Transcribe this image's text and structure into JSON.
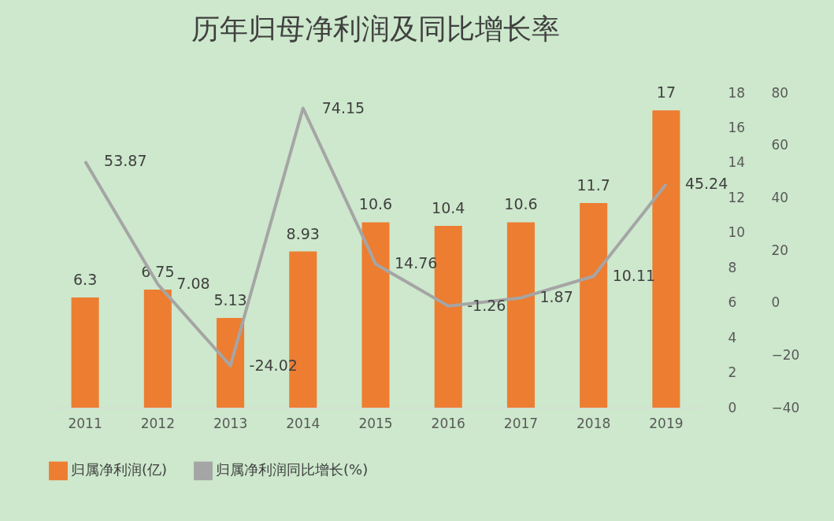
{
  "chart_data": {
    "type": "bar",
    "title": "历年归母净利润及同比增长率",
    "categories": [
      "2011",
      "2012",
      "2013",
      "2014",
      "2015",
      "2016",
      "2017",
      "2018",
      "2019"
    ],
    "series": [
      {
        "name": "归属净利润(亿)",
        "color": "#ed7d31",
        "values": [
          6.3,
          6.75,
          5.13,
          8.93,
          10.6,
          10.4,
          10.6,
          11.7,
          17
        ]
      },
      {
        "name": "归属净利润同比增长(%)",
        "type": "line",
        "axis": "y2",
        "color": "#a5a5a5",
        "values": [
          53.87,
          7.08,
          -24.02,
          74.15,
          14.76,
          -1.26,
          1.87,
          10.11,
          45.24
        ]
      }
    ],
    "ylim": [
      0,
      18
    ],
    "yticks": [
      0,
      2,
      4,
      6,
      8,
      10,
      12,
      14,
      16,
      18
    ],
    "y2lim": [
      -40,
      80
    ],
    "y2ticks": [
      -40,
      -20,
      0,
      20,
      40,
      60,
      80
    ],
    "data_labels": true,
    "legend": "bottom",
    "grid": false
  }
}
